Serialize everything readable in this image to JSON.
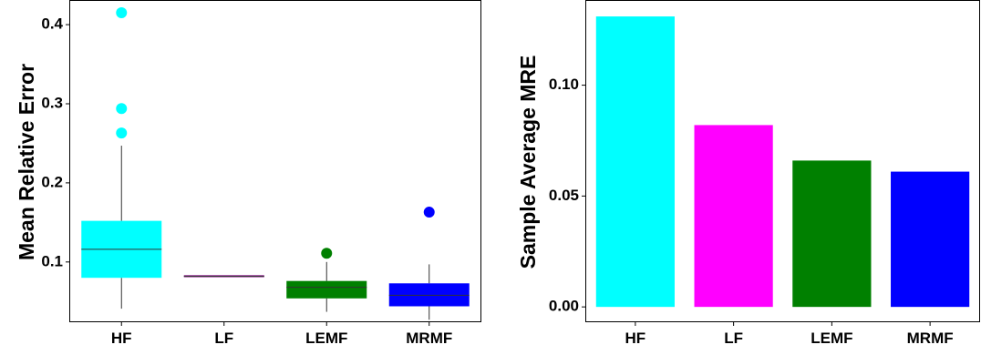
{
  "chart_data": [
    {
      "type": "box",
      "title": "",
      "xlabel": "",
      "ylabel": "Mean Relative Error",
      "categories": [
        "HF",
        "LF",
        "LEMF",
        "MRMF"
      ],
      "ylim": [
        0.025,
        0.43
      ],
      "yticks": [
        0.1,
        0.2,
        0.3,
        0.4
      ],
      "ytick_labels": [
        "0.1",
        "0.2",
        "0.3",
        "0.4"
      ],
      "grid": false,
      "legend": "none",
      "boxes": [
        {
          "category": "HF",
          "color": "#00ffff",
          "whisker_low": 0.041,
          "q1": 0.08,
          "median": 0.116,
          "q3": 0.152,
          "whisker_high": 0.247,
          "outliers": [
            0.263,
            0.294,
            0.415
          ]
        },
        {
          "category": "LF",
          "color": "#800080",
          "whisker_low": 0.082,
          "q1": 0.082,
          "median": 0.082,
          "q3": 0.082,
          "whisker_high": 0.082,
          "outliers": []
        },
        {
          "category": "LEMF",
          "color": "#008000",
          "whisker_low": 0.037,
          "q1": 0.054,
          "median": 0.068,
          "q3": 0.076,
          "whisker_high": 0.1,
          "outliers": [
            0.111
          ]
        },
        {
          "category": "MRMF",
          "color": "#0000ff",
          "whisker_low": 0.027,
          "q1": 0.044,
          "median": 0.058,
          "q3": 0.073,
          "whisker_high": 0.097,
          "outliers": [
            0.163
          ]
        }
      ]
    },
    {
      "type": "bar",
      "title": "",
      "xlabel": "",
      "ylabel": "Sample Average MRE",
      "categories": [
        "HF",
        "LF",
        "LEMF",
        "MRMF"
      ],
      "values": [
        0.131,
        0.082,
        0.066,
        0.061
      ],
      "colors": [
        "#00ffff",
        "#ff00ff",
        "#008000",
        "#0000ff"
      ],
      "ylim": [
        -0.0065,
        0.138
      ],
      "yticks": [
        0.0,
        0.05,
        0.1
      ],
      "ytick_labels": [
        "0.00",
        "0.05",
        "0.10"
      ],
      "grid": false,
      "legend": "none"
    }
  ]
}
